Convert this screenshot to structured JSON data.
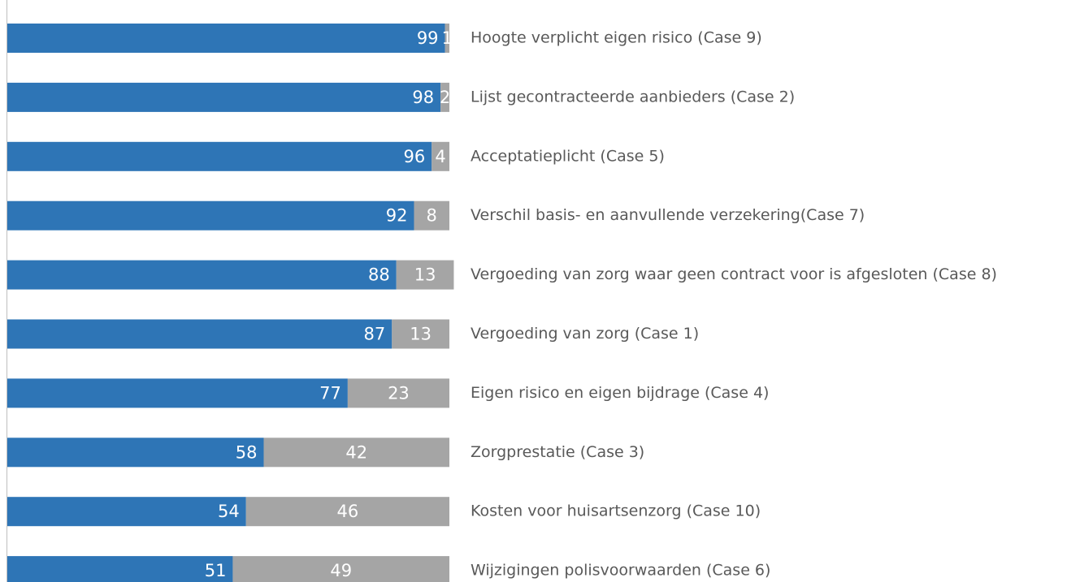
{
  "chart_data": {
    "type": "stacked_barh",
    "categories": [
      "Hoogte verplicht eigen risico (Case 9)",
      "Lijst gecontracteerde aanbieders (Case 2)",
      "Acceptatieplicht (Case 5)",
      "Verschil basis- en aanvullende verzekering(Case 7)",
      "Vergoeding van zorg waar geen contract voor is afgesloten (Case 8)",
      "Vergoeding van zorg (Case 1)",
      "Eigen risico en eigen bijdrage (Case 4)",
      "Zorgprestatie (Case 3)",
      "Kosten voor huisartsenzorg (Case 10)",
      "Wijzigingen polisvoorwaarden (Case 6)"
    ],
    "series": [
      {
        "color": "#2e75b6",
        "values": [
          99,
          98,
          96,
          92,
          88,
          87,
          77,
          58,
          54,
          51
        ]
      },
      {
        "color": "#a5a5a5",
        "values": [
          1,
          2,
          4,
          8,
          13,
          13,
          23,
          42,
          46,
          49
        ]
      }
    ],
    "xlim": [
      0,
      100
    ]
  }
}
